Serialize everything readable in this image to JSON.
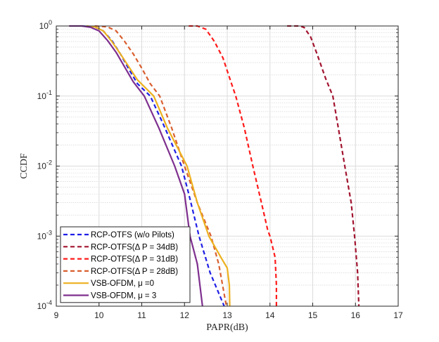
{
  "chart_data": {
    "type": "line",
    "title": "",
    "xlabel": "PAPR(dB)",
    "ylabel": "CCDF",
    "xlim": [
      9,
      17
    ],
    "ylim": [
      0.0001,
      1
    ],
    "yscale": "log",
    "grid": true,
    "minor_grid": true,
    "legend_position": "bottom-left",
    "xticks": [
      "9",
      "10",
      "11",
      "12",
      "13",
      "14",
      "15",
      "16",
      "17"
    ],
    "yticks": [
      {
        "base": "10",
        "exp": "0"
      },
      {
        "base": "10",
        "exp": "-1"
      },
      {
        "base": "10",
        "exp": "-2"
      },
      {
        "base": "10",
        "exp": "-3"
      },
      {
        "base": "10",
        "exp": "-4"
      }
    ],
    "series": [
      {
        "name": "RCP-OTFS (w/o Pilots)",
        "color": "#1f1fe6",
        "style": "dashed",
        "x": [
          9.6,
          9.9,
          10.1,
          10.3,
          10.5,
          10.7,
          10.9,
          11.2,
          11.5,
          11.93,
          12.1,
          12.34,
          12.6,
          12.93
        ],
        "y": [
          1,
          0.97,
          0.85,
          0.62,
          0.4,
          0.24,
          0.15,
          0.1,
          0.04,
          0.01,
          0.004,
          0.001,
          0.0003,
          0.0001
        ]
      },
      {
        "name": "RCP-OTFS(Δ P = 34dB)",
        "color": "#a2142f",
        "style": "dashed",
        "x": [
          14.4,
          14.7,
          14.8,
          14.95,
          15.1,
          15.3,
          15.47,
          15.6,
          15.75,
          15.9,
          15.98,
          16.05,
          16.08
        ],
        "y": [
          1,
          1,
          0.95,
          0.7,
          0.4,
          0.18,
          0.1,
          0.035,
          0.01,
          0.003,
          0.001,
          0.0003,
          0.0001
        ]
      },
      {
        "name": "RCP-OTFS(Δ P = 31dB)",
        "color": "#ff1a1a",
        "style": "dashed",
        "x": [
          12.1,
          12.3,
          12.5,
          12.7,
          12.9,
          13.1,
          13.2,
          13.4,
          13.6,
          13.8,
          13.95,
          14.0,
          14.12,
          14.15,
          14.15
        ],
        "y": [
          1,
          1,
          0.9,
          0.6,
          0.35,
          0.15,
          0.1,
          0.035,
          0.01,
          0.003,
          0.0012,
          0.001,
          0.0005,
          0.0002,
          0.0001
        ]
      },
      {
        "name": "RCP-OTFS(Δ P = 28dB)",
        "color": "#d95f30",
        "style": "dashed",
        "x": [
          9.9,
          10.2,
          10.4,
          10.6,
          10.8,
          11.0,
          11.2,
          11.42,
          11.7,
          12.0,
          12.3,
          12.62,
          12.8,
          12.98
        ],
        "y": [
          1,
          0.97,
          0.85,
          0.6,
          0.4,
          0.25,
          0.15,
          0.1,
          0.035,
          0.01,
          0.003,
          0.001,
          0.0004,
          0.0001
        ]
      },
      {
        "name": "VSB-OFDM, μ =0",
        "color": "#edb120",
        "style": "solid",
        "x": [
          9.7,
          9.9,
          10.1,
          10.3,
          10.5,
          10.7,
          10.9,
          11.28,
          11.6,
          12.06,
          12.3,
          12.57,
          12.85,
          13.0,
          13.05,
          13.06
        ],
        "y": [
          1,
          0.97,
          0.85,
          0.6,
          0.4,
          0.26,
          0.17,
          0.1,
          0.035,
          0.01,
          0.003,
          0.001,
          0.0005,
          0.00035,
          0.0002,
          0.0001
        ]
      },
      {
        "name": "VSB-OFDM, μ = 3",
        "color": "#7e2f8e",
        "style": "solid",
        "x": [
          9.3,
          9.6,
          9.8,
          10.0,
          10.2,
          10.4,
          10.6,
          10.8,
          11.06,
          11.4,
          11.77,
          12.0,
          12.13,
          12.3,
          12.42
        ],
        "y": [
          1,
          1,
          0.96,
          0.85,
          0.62,
          0.42,
          0.26,
          0.16,
          0.1,
          0.035,
          0.01,
          0.004,
          0.001,
          0.0004,
          0.0001
        ]
      }
    ]
  }
}
